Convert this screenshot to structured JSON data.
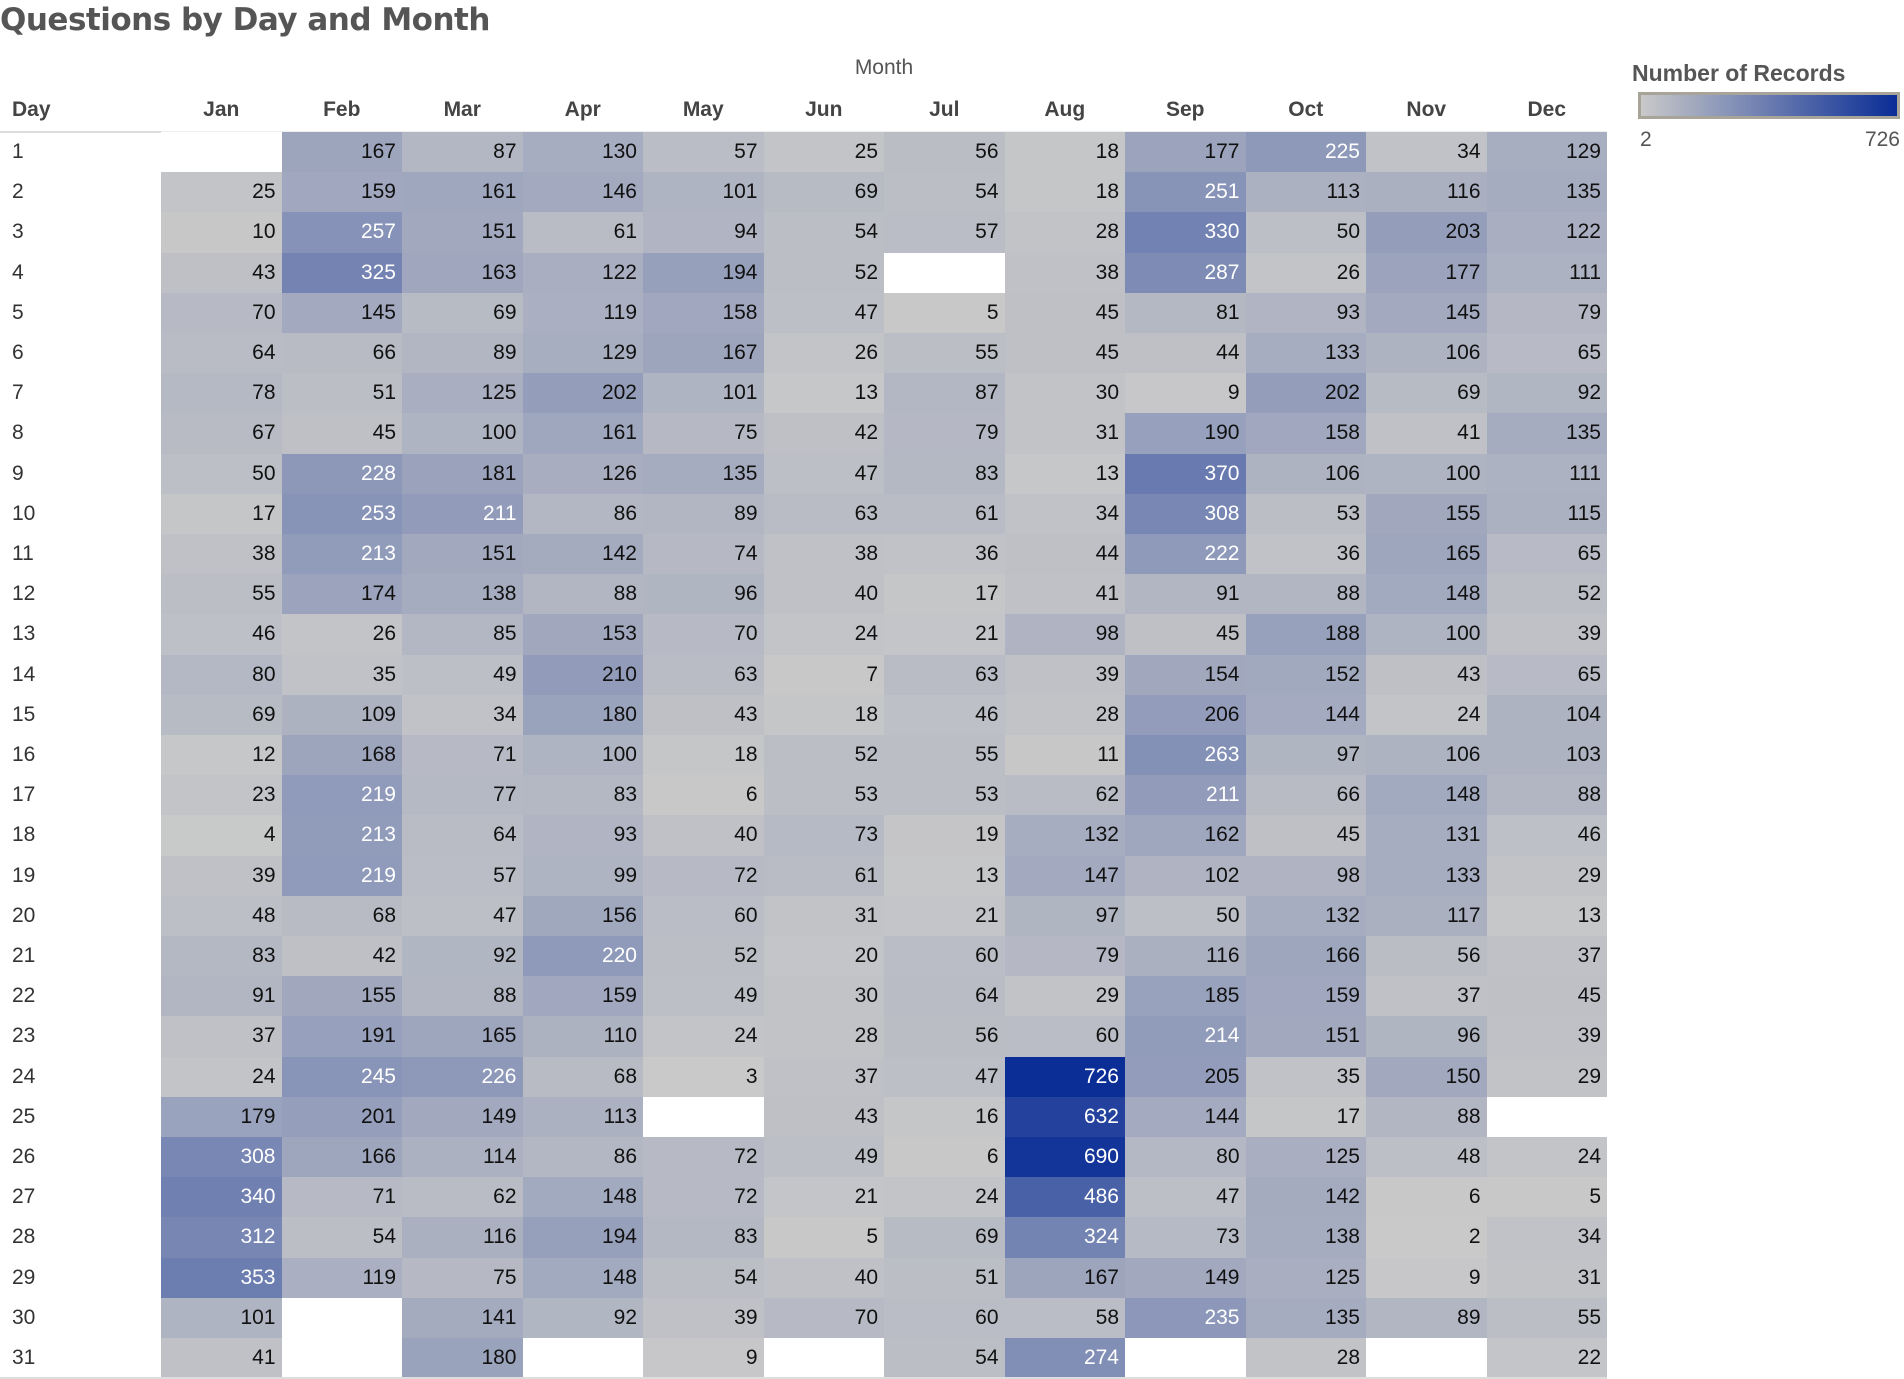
{
  "chart_data": {
    "type": "heatmap",
    "title": "Questions by Day and Month",
    "column_axis_label": "Month",
    "row_axis_label": "Day",
    "months": [
      "Jan",
      "Feb",
      "Mar",
      "Apr",
      "May",
      "Jun",
      "Jul",
      "Aug",
      "Sep",
      "Oct",
      "Nov",
      "Dec"
    ],
    "days": [
      1,
      2,
      3,
      4,
      5,
      6,
      7,
      8,
      9,
      10,
      11,
      12,
      13,
      14,
      15,
      16,
      17,
      18,
      19,
      20,
      21,
      22,
      23,
      24,
      25,
      26,
      27,
      28,
      29,
      30,
      31
    ],
    "values": {
      "Jan": [
        null,
        25,
        10,
        43,
        70,
        64,
        78,
        67,
        50,
        17,
        38,
        55,
        46,
        80,
        69,
        12,
        23,
        4,
        39,
        48,
        83,
        91,
        37,
        24,
        179,
        308,
        340,
        312,
        353,
        101,
        41
      ],
      "Feb": [
        167,
        159,
        257,
        325,
        145,
        66,
        51,
        45,
        228,
        253,
        213,
        174,
        26,
        35,
        109,
        168,
        219,
        213,
        219,
        68,
        42,
        155,
        191,
        245,
        201,
        166,
        71,
        54,
        119,
        null,
        null
      ],
      "Mar": [
        87,
        161,
        151,
        163,
        69,
        89,
        125,
        100,
        181,
        211,
        151,
        138,
        85,
        49,
        34,
        71,
        77,
        64,
        57,
        47,
        92,
        88,
        165,
        226,
        149,
        114,
        62,
        116,
        75,
        141,
        180
      ],
      "Apr": [
        130,
        146,
        61,
        122,
        119,
        129,
        202,
        161,
        126,
        86,
        142,
        88,
        153,
        210,
        180,
        100,
        83,
        93,
        99,
        156,
        220,
        159,
        110,
        68,
        113,
        86,
        148,
        194,
        148,
        92,
        null
      ],
      "May": [
        57,
        101,
        94,
        194,
        158,
        167,
        101,
        75,
        135,
        89,
        74,
        96,
        70,
        63,
        43,
        18,
        6,
        40,
        72,
        60,
        52,
        49,
        24,
        3,
        null,
        72,
        72,
        83,
        54,
        39,
        9
      ],
      "Jun": [
        25,
        69,
        54,
        52,
        47,
        26,
        13,
        42,
        47,
        63,
        38,
        40,
        24,
        7,
        18,
        52,
        53,
        73,
        61,
        31,
        20,
        30,
        28,
        37,
        43,
        49,
        21,
        5,
        40,
        70,
        null
      ],
      "Jul": [
        56,
        54,
        57,
        null,
        5,
        55,
        87,
        79,
        83,
        61,
        36,
        17,
        21,
        63,
        46,
        55,
        53,
        19,
        13,
        21,
        60,
        64,
        56,
        47,
        16,
        6,
        24,
        69,
        51,
        60,
        54
      ],
      "Aug": [
        18,
        18,
        28,
        38,
        45,
        45,
        30,
        31,
        13,
        34,
        44,
        41,
        98,
        39,
        28,
        11,
        62,
        132,
        147,
        97,
        79,
        29,
        60,
        726,
        632,
        690,
        486,
        324,
        167,
        58,
        274
      ],
      "Sep": [
        177,
        251,
        330,
        287,
        81,
        44,
        9,
        190,
        370,
        308,
        222,
        91,
        45,
        154,
        206,
        263,
        211,
        162,
        102,
        50,
        116,
        185,
        214,
        205,
        144,
        80,
        47,
        73,
        149,
        235,
        null
      ],
      "Oct": [
        225,
        113,
        50,
        26,
        93,
        133,
        202,
        158,
        106,
        53,
        36,
        88,
        188,
        152,
        144,
        97,
        66,
        45,
        98,
        132,
        166,
        159,
        151,
        35,
        17,
        125,
        142,
        138,
        125,
        135,
        28
      ],
      "Nov": [
        34,
        116,
        203,
        177,
        145,
        106,
        69,
        41,
        100,
        155,
        165,
        148,
        100,
        43,
        24,
        106,
        148,
        131,
        133,
        117,
        56,
        37,
        96,
        150,
        88,
        48,
        6,
        2,
        9,
        89,
        null
      ],
      "Dec": [
        129,
        135,
        122,
        111,
        79,
        65,
        92,
        135,
        111,
        115,
        65,
        52,
        39,
        65,
        104,
        103,
        88,
        46,
        29,
        13,
        37,
        45,
        39,
        29,
        null,
        24,
        5,
        34,
        31,
        55,
        22
      ]
    },
    "legend": {
      "title": "Number of Records",
      "min": 2,
      "max": 726,
      "min_color": "#c9c9c9",
      "max_color": "#0a2d96",
      "placement": "top-right"
    }
  }
}
